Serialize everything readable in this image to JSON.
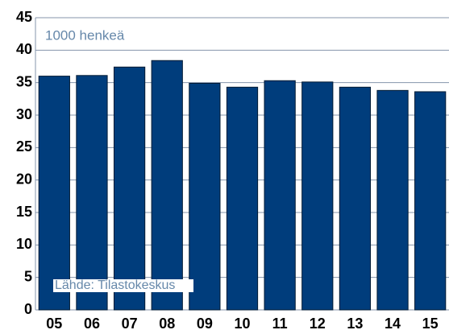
{
  "chart_data": {
    "type": "bar",
    "categories": [
      "05",
      "06",
      "07",
      "08",
      "09",
      "10",
      "11",
      "12",
      "13",
      "14",
      "15"
    ],
    "values": [
      36.0,
      36.1,
      37.4,
      38.4,
      34.9,
      34.3,
      35.3,
      35.1,
      34.3,
      33.8,
      33.6
    ],
    "color": "#003d7c",
    "ylim": [
      0,
      45
    ],
    "yticks": [
      0,
      5,
      10,
      15,
      20,
      25,
      30,
      35,
      40,
      45
    ],
    "grid": true,
    "annotations": [
      "1000 henkeä",
      "Lähde: Tilastokeskus"
    ]
  }
}
